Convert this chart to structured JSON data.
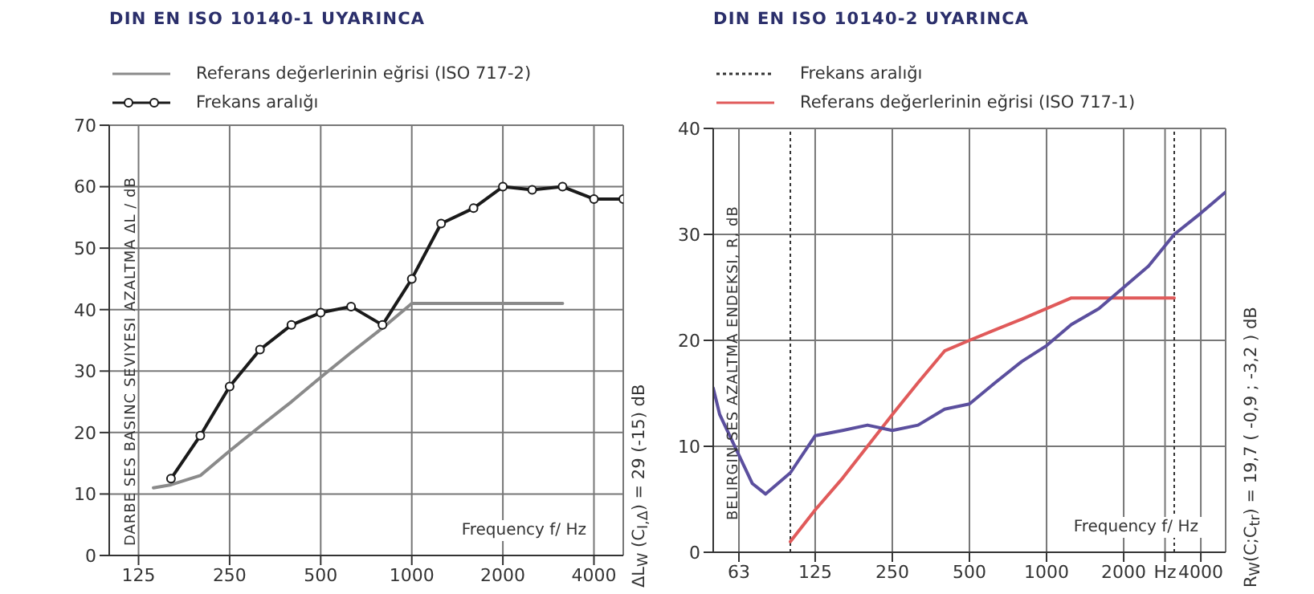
{
  "chart_data": [
    {
      "type": "line",
      "title": "DIN EN ISO 10140-1 UYARINCA",
      "xlabel": "Frequency f/ Hz",
      "ylabel": "DARBE SES BASINC SEVIYESI AZALTMA ΔL / dB",
      "legend": "top left",
      "grid": true,
      "log": "x",
      "xlim": [
        100,
        5000
      ],
      "xticks": [
        125,
        250,
        500,
        1000,
        2000,
        4000
      ],
      "ylim": [
        0,
        70
      ],
      "yticks": [
        0,
        10,
        20,
        30,
        40,
        50,
        60,
        70
      ],
      "annotations": [
        "ΔL$_{W}$ (C$_{I,Δ}$) = 29 (-15) dB"
      ],
      "series": [
        {
          "name": "Referans değerlerinin eğrisi (ISO 717-2)",
          "color": "#8a8a8a",
          "marker": "none",
          "x": [
            140,
            160,
            200,
            250,
            315,
            400,
            500,
            630,
            800,
            1000,
            1250,
            1600,
            2000,
            2500,
            3150
          ],
          "values": [
            11,
            11.5,
            13,
            17,
            21,
            25,
            29,
            33,
            37,
            41,
            41,
            41,
            41,
            41,
            41
          ]
        },
        {
          "name": "Frekans aralığı",
          "color": "#1a1a1a",
          "marker": "circle",
          "x": [
            160,
            200,
            250,
            315,
            400,
            500,
            630,
            800,
            1000,
            1250,
            1600,
            2000,
            2500,
            3150,
            4000,
            5000
          ],
          "values": [
            12.5,
            19.5,
            27.5,
            33.5,
            37.5,
            39.5,
            40.5,
            37.5,
            45,
            54,
            56.5,
            60,
            59.5,
            60,
            58,
            58
          ]
        }
      ]
    },
    {
      "type": "line",
      "title": "DIN EN ISO 10140-2 UYARINCA",
      "xlabel": "Frequency f/ Hz",
      "ylabel": "BELIRGIN SES AZALTMA ENDEKSI, R, dB",
      "legend": "top left",
      "grid": true,
      "log": "x",
      "xlim": [
        50,
        5000
      ],
      "xticks": [
        63,
        125,
        250,
        500,
        1000,
        2000,
        {
          "value": 2900,
          "label": "Hz"
        },
        4000
      ],
      "ylim": [
        0,
        40
      ],
      "yticks": [
        0,
        10,
        20,
        30,
        40
      ],
      "annotations": [
        "R$_{W}$(C;C$_{tr}$) = 19,7 ( -0,9 ; -3,2 ) dB"
      ],
      "ref_lines": [
        {
          "axis": "x",
          "value": 100,
          "label": "Frekans aralığı",
          "line_style": "dotted",
          "color": "#333333"
        },
        {
          "axis": "x",
          "value": 3150,
          "line_style": "dotted",
          "color": "#333333"
        }
      ],
      "series": [
        {
          "name": "Referans değerlerinin eğrisi (ISO 717-1)",
          "color": "#e05a5a",
          "marker": "none",
          "x": [
            100,
            125,
            160,
            200,
            250,
            315,
            400,
            500,
            630,
            800,
            1000,
            1250,
            1600,
            2000,
            2500,
            3150
          ],
          "values": [
            1,
            4,
            7,
            10,
            13,
            16,
            19,
            20,
            21,
            22,
            23,
            24,
            24,
            24,
            24,
            24
          ]
        },
        {
          "color": "#5b4f9e",
          "marker": "none",
          "x": [
            50,
            53,
            71,
            80,
            100,
            125,
            160,
            200,
            250,
            315,
            400,
            500,
            630,
            800,
            1000,
            1250,
            1600,
            2000,
            2500,
            3150,
            4000,
            5000
          ],
          "values": [
            15.5,
            13,
            6.5,
            5.5,
            7.5,
            11,
            11.5,
            12,
            11.5,
            12,
            13.5,
            14,
            16,
            18,
            19.5,
            21.5,
            23,
            25,
            27,
            30,
            32,
            34
          ]
        }
      ]
    }
  ]
}
